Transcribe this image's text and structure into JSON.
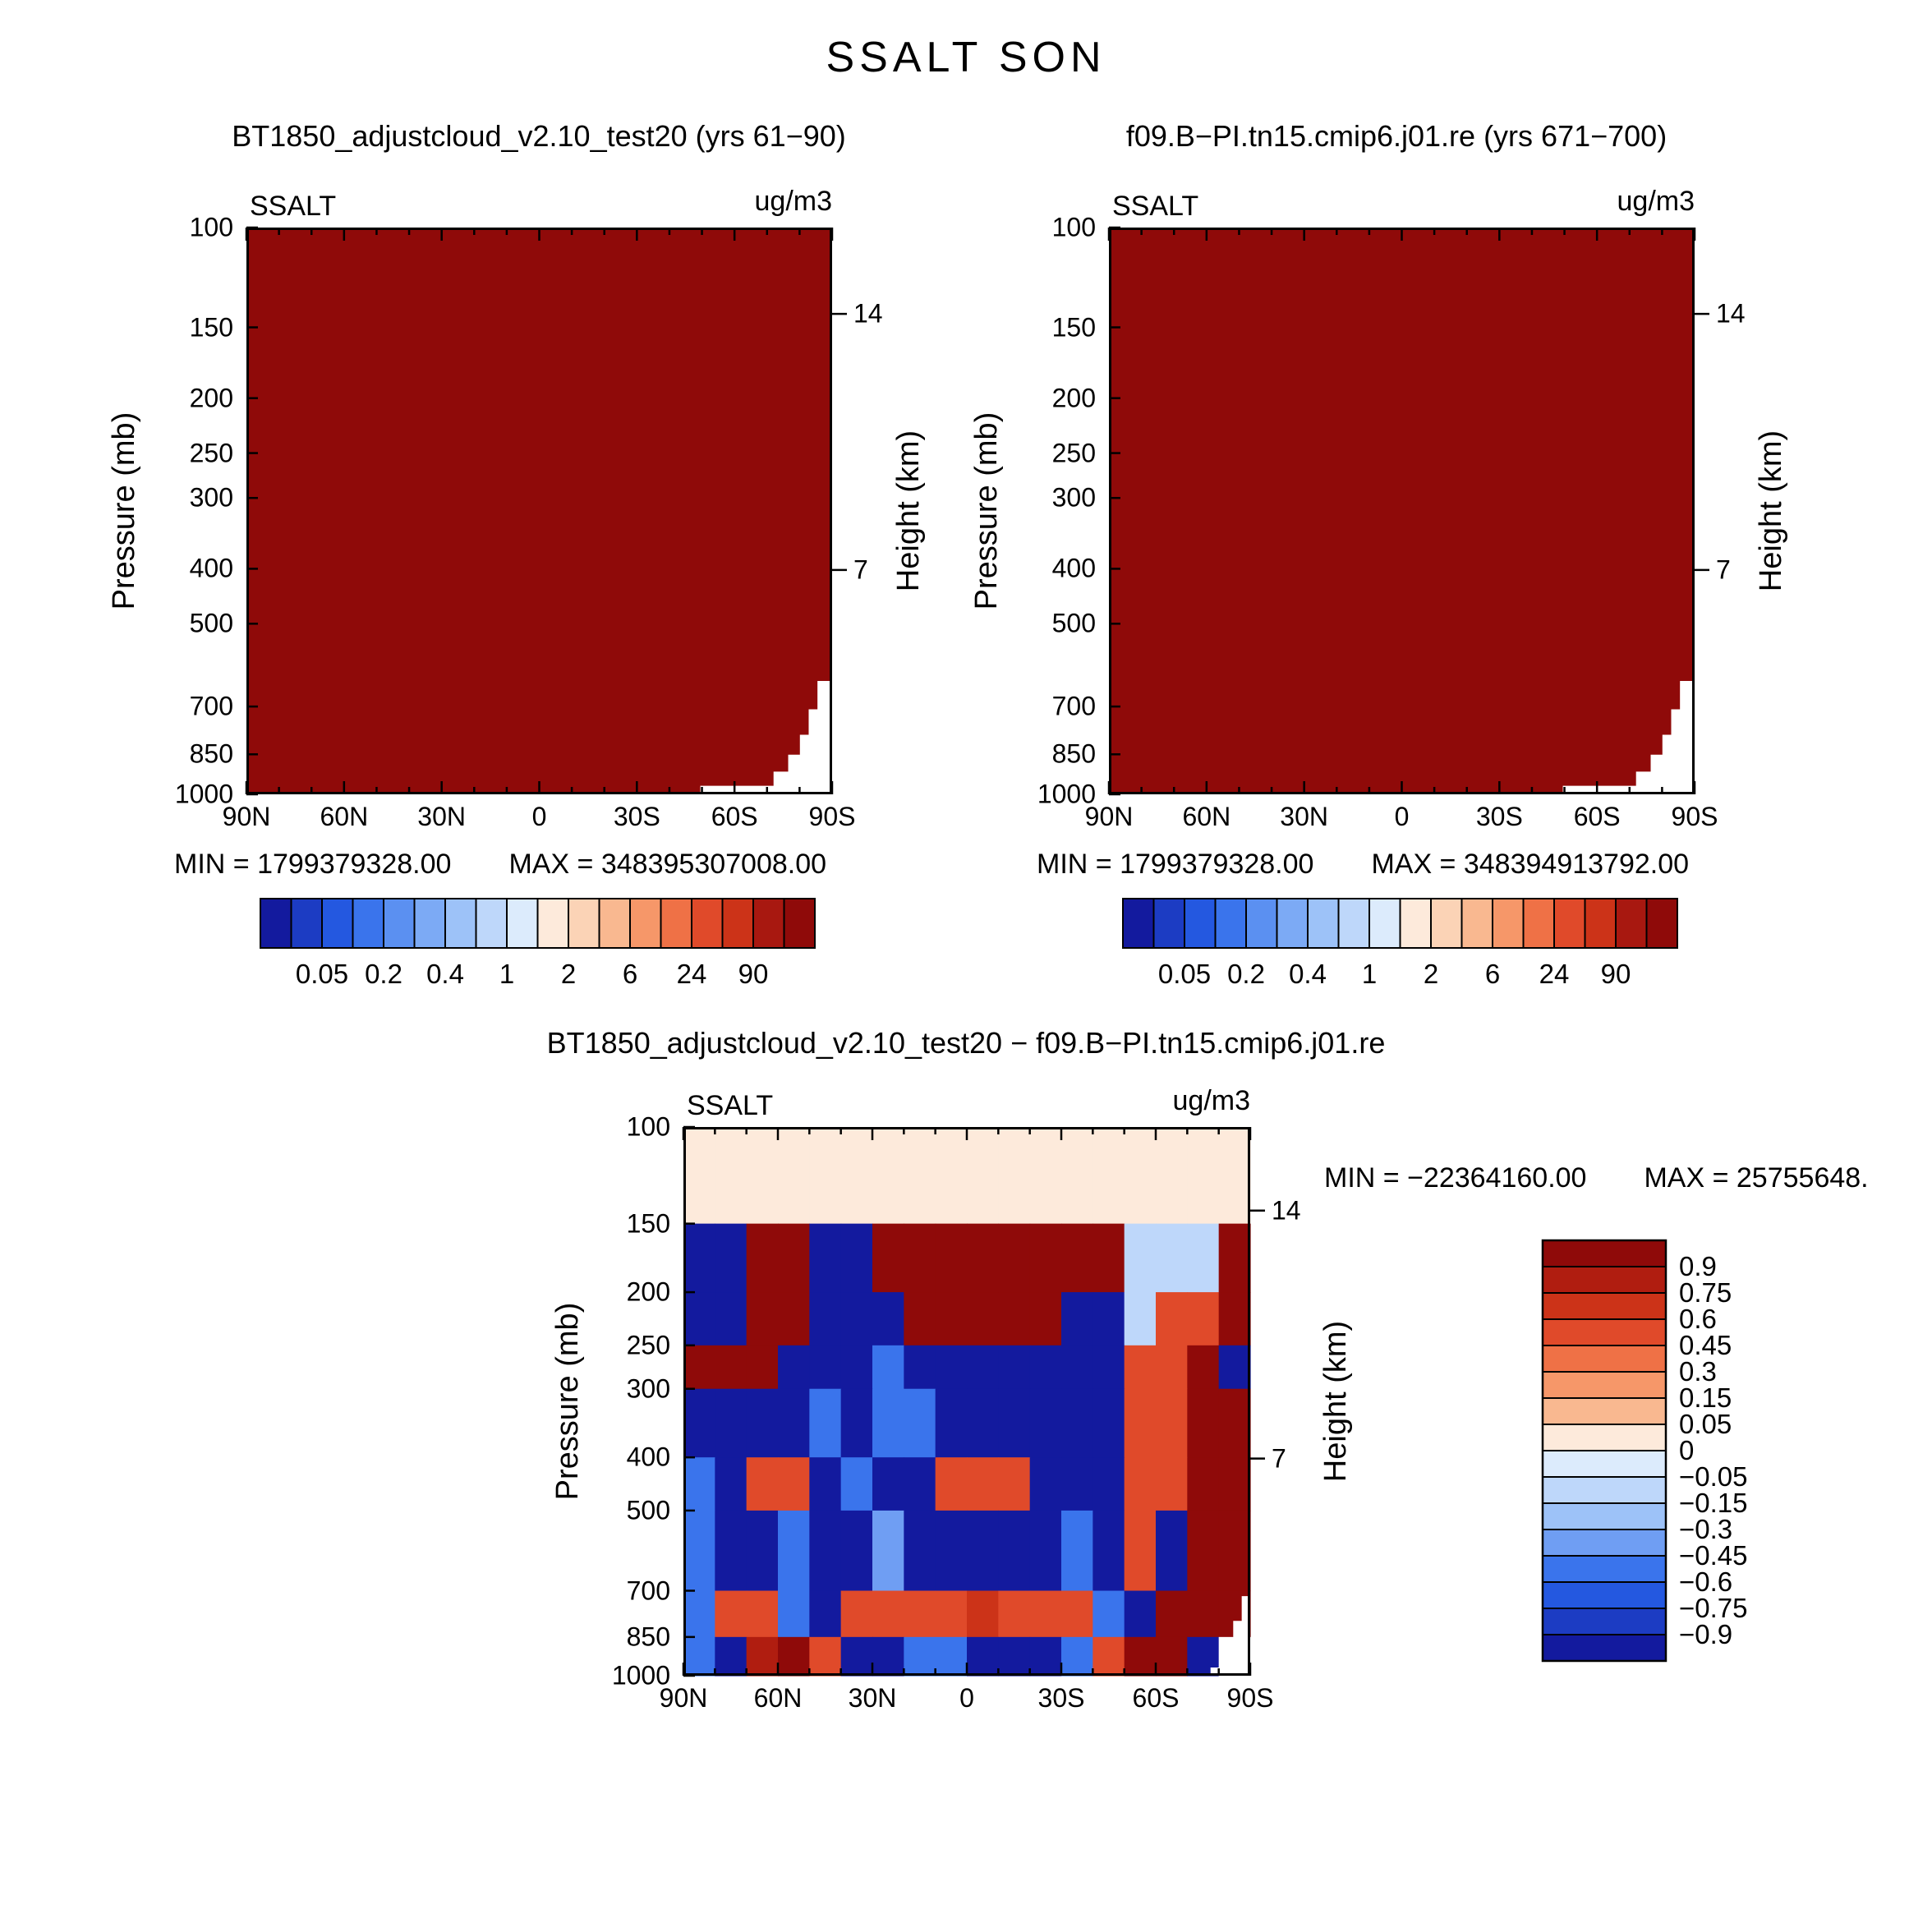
{
  "page_title": "SSALT SON",
  "variable": "SSALT",
  "season": "SON",
  "panels": {
    "left": {
      "title": "BT1850_adjustcloud_v2.10_test20 (yrs 61−90)",
      "field_label": "SSALT",
      "units": "ug/m3",
      "ylabel": "Pressure (mb)",
      "ylabel_right": "Height (km)",
      "min_label": "MIN = 1799379328.00",
      "max_label": "MAX = 348395307008.00"
    },
    "right": {
      "title": "f09.B−PI.tn15.cmip6.j01.re (yrs 671−700)",
      "field_label": "SSALT",
      "units": "ug/m3",
      "ylabel": "Pressure (mb)",
      "ylabel_right": "Height (km)",
      "min_label": "MIN = 1799379328.00",
      "max_label": "MAX = 348394913792.00"
    },
    "diff": {
      "title": "BT1850_adjustcloud_v2.10_test20 − f09.B−PI.tn15.cmip6.j01.re",
      "field_label": "SSALT",
      "units": "ug/m3",
      "ylabel": "Pressure (mb)",
      "ylabel_right": "Height (km)",
      "min_label": "MIN = −22364160.00",
      "max_label": "MAX = 25755648."
    }
  },
  "chart_data": [
    {
      "type": "heatmap",
      "title": "BT1850_adjustcloud_v2.10_test20 (yrs 61-90)",
      "xlabel": "latitude",
      "ylabel": "Pressure (mb)",
      "ylabel_right": "Height (km)",
      "x_ticks": {
        "labels": [
          "90N",
          "60N",
          "30N",
          "0",
          "30S",
          "60S",
          "90S"
        ],
        "lats": [
          90,
          60,
          30,
          0,
          -30,
          -60,
          -90
        ]
      },
      "pressure_ticks": [
        100,
        150,
        200,
        250,
        300,
        400,
        500,
        700,
        850,
        1000
      ],
      "height_ticks": [
        {
          "label": "14",
          "pressure": 142
        },
        {
          "label": "7",
          "pressure": 402
        }
      ],
      "min": 1799379328.0,
      "max": 348395307008.0,
      "field": {
        "description": "zonal-mean SSALT, everywhere above top contour level",
        "fill_value_exceeds": 90,
        "color": "#8f0a09"
      },
      "topography_mask_norm": [
        [
          0.775,
          1
        ],
        [
          0.775,
          0.985
        ],
        [
          0.9,
          0.985
        ],
        [
          0.9,
          0.96
        ],
        [
          0.925,
          0.96
        ],
        [
          0.925,
          0.93
        ],
        [
          0.945,
          0.93
        ],
        [
          0.945,
          0.895
        ],
        [
          0.96,
          0.895
        ],
        [
          0.96,
          0.85
        ],
        [
          0.975,
          0.85
        ],
        [
          0.975,
          0.8
        ],
        [
          1,
          0.8
        ],
        [
          1,
          1
        ]
      ],
      "colorbar": {
        "orientation": "horizontal",
        "colors": [
          "#131a9e",
          "#1c3cc3",
          "#2458e0",
          "#3a74ec",
          "#5b90f1",
          "#7caaf5",
          "#9dc2f8",
          "#bed7fa",
          "#dcebfc",
          "#fdeadb",
          "#fbd3b6",
          "#f9b890",
          "#f69769",
          "#ef7146",
          "#e04a2a",
          "#cc3318",
          "#a81810",
          "#8f0a09"
        ],
        "labels": [
          "0.05",
          "0.2",
          "0.4",
          "1",
          "2",
          "6",
          "24",
          "90"
        ],
        "label_boundary_indices": [
          2,
          4,
          6,
          8,
          10,
          12,
          14,
          16
        ]
      }
    },
    {
      "type": "heatmap",
      "title": "f09.B-PI.tn15.cmip6.j01.re (yrs 671-700)",
      "xlabel": "latitude",
      "ylabel": "Pressure (mb)",
      "ylabel_right": "Height (km)",
      "x_ticks": {
        "labels": [
          "90N",
          "60N",
          "30N",
          "0",
          "30S",
          "60S",
          "90S"
        ],
        "lats": [
          90,
          60,
          30,
          0,
          -30,
          -60,
          -90
        ]
      },
      "pressure_ticks": [
        100,
        150,
        200,
        250,
        300,
        400,
        500,
        700,
        850,
        1000
      ],
      "height_ticks": [
        {
          "label": "14",
          "pressure": 142
        },
        {
          "label": "7",
          "pressure": 402
        }
      ],
      "min": 1799379328.0,
      "max": 348394913792.0,
      "field": {
        "description": "zonal-mean SSALT, everywhere above top contour level",
        "fill_value_exceeds": 90,
        "color": "#8f0a09"
      },
      "topography_mask_norm": [
        [
          0.775,
          1
        ],
        [
          0.775,
          0.985
        ],
        [
          0.9,
          0.985
        ],
        [
          0.9,
          0.96
        ],
        [
          0.925,
          0.96
        ],
        [
          0.925,
          0.93
        ],
        [
          0.945,
          0.93
        ],
        [
          0.945,
          0.895
        ],
        [
          0.96,
          0.895
        ],
        [
          0.96,
          0.85
        ],
        [
          0.975,
          0.85
        ],
        [
          0.975,
          0.8
        ],
        [
          1,
          0.8
        ],
        [
          1,
          1
        ]
      ],
      "colorbar": {
        "orientation": "horizontal",
        "colors": [
          "#131a9e",
          "#1c3cc3",
          "#2458e0",
          "#3a74ec",
          "#5b90f1",
          "#7caaf5",
          "#9dc2f8",
          "#bed7fa",
          "#dcebfc",
          "#fdeadb",
          "#fbd3b6",
          "#f9b890",
          "#f69769",
          "#ef7146",
          "#e04a2a",
          "#cc3318",
          "#a81810",
          "#8f0a09"
        ],
        "labels": [
          "0.05",
          "0.2",
          "0.4",
          "1",
          "2",
          "6",
          "24",
          "90"
        ],
        "label_boundary_indices": [
          2,
          4,
          6,
          8,
          10,
          12,
          14,
          16
        ]
      }
    },
    {
      "type": "heatmap",
      "title": "BT1850_adjustcloud_v2.10_test20 - f09.B-PI.tn15.cmip6.j01.re",
      "xlabel": "latitude",
      "ylabel": "Pressure (mb)",
      "ylabel_right": "Height (km)",
      "x_ticks": {
        "labels": [
          "90N",
          "60N",
          "30N",
          "0",
          "30S",
          "60S",
          "90S"
        ],
        "lats": [
          90,
          60,
          30,
          0,
          -30,
          -60,
          -90
        ]
      },
      "pressure_ticks": [
        100,
        150,
        200,
        250,
        300,
        400,
        500,
        700,
        850,
        1000
      ],
      "height_ticks": [
        {
          "label": "14",
          "pressure": 142
        },
        {
          "label": "7",
          "pressure": 402
        }
      ],
      "min": -22364160.0,
      "max": 25755648,
      "lat_edges": [
        90,
        80,
        70,
        60,
        50,
        40,
        30,
        20,
        10,
        0,
        -10,
        -20,
        -30,
        -40,
        -50,
        -60,
        -70,
        -80,
        -90
      ],
      "pressure_edges": [
        100,
        150,
        200,
        250,
        300,
        400,
        500,
        700,
        850,
        1000
      ],
      "levels": [
        -0.9,
        -0.75,
        -0.6,
        -0.45,
        -0.3,
        -0.15,
        -0.05,
        0,
        0.05,
        0.15,
        0.3,
        0.45,
        0.6,
        0.75,
        0.9
      ],
      "level_colors": [
        "#131a9e",
        "#1c3cc3",
        "#2458e0",
        "#3a74ec",
        "#6f9ef3",
        "#9dc2f8",
        "#bed7fa",
        "#dcebfc",
        "#fdeadb",
        "#f9b890",
        "#f69769",
        "#ef7146",
        "#e04a2a",
        "#cc3318",
        "#b01d10",
        "#8f0a09"
      ],
      "values": [
        [
          0.02,
          0.02,
          0.02,
          0.02,
          0.02,
          0.02,
          0.02,
          0.02,
          0.02,
          0.02,
          0.02,
          0.02,
          0.02,
          0.02,
          0.02,
          0.02,
          0.02,
          0.02
        ],
        [
          -0.95,
          -0.95,
          0.95,
          0.95,
          -0.95,
          -0.95,
          0.95,
          0.95,
          0.95,
          0.95,
          0.95,
          0.95,
          0.95,
          0.95,
          -0.1,
          -0.1,
          -0.1,
          0.95
        ],
        [
          -0.95,
          -0.95,
          0.95,
          0.95,
          -0.95,
          -0.95,
          -0.95,
          0.95,
          0.95,
          0.95,
          0.95,
          0.95,
          -0.95,
          -0.95,
          -0.1,
          0.5,
          0.5,
          0.95
        ],
        [
          0.95,
          0.95,
          0.95,
          -0.95,
          -0.95,
          -0.95,
          -0.5,
          -0.95,
          -0.95,
          -0.95,
          -0.95,
          -0.95,
          -0.95,
          -0.95,
          0.5,
          0.5,
          0.95,
          -0.95
        ],
        [
          -0.95,
          -0.95,
          -0.95,
          -0.95,
          -0.5,
          -0.95,
          -0.5,
          -0.5,
          -0.95,
          -0.95,
          -0.95,
          -0.95,
          -0.95,
          -0.95,
          0.5,
          0.5,
          0.95,
          0.95
        ],
        [
          -0.5,
          -0.95,
          0.5,
          0.5,
          -0.95,
          -0.5,
          -0.95,
          -0.95,
          0.5,
          0.5,
          0.5,
          -0.95,
          -0.95,
          -0.95,
          0.5,
          0.5,
          0.95,
          0.95
        ],
        [
          -0.5,
          -0.95,
          -0.95,
          -0.5,
          -0.95,
          -0.95,
          -0.3,
          -0.95,
          -0.95,
          -0.95,
          -0.95,
          -0.95,
          -0.5,
          -0.95,
          0.5,
          -0.95,
          0.95,
          0.95
        ],
        [
          -0.5,
          0.5,
          0.5,
          -0.5,
          -0.95,
          0.5,
          0.5,
          0.5,
          0.5,
          0.65,
          0.5,
          0.5,
          0.5,
          -0.5,
          -0.95,
          0.95,
          0.95,
          0.95
        ],
        [
          -0.5,
          -0.95,
          0.8,
          0.95,
          0.5,
          -0.95,
          -0.95,
          -0.5,
          -0.5,
          -0.95,
          -0.95,
          -0.95,
          -0.5,
          0.5,
          0.95,
          0.95,
          -0.95,
          null
        ]
      ],
      "topography_mask_norm": [
        [
          0.93,
          1
        ],
        [
          0.93,
          0.985
        ],
        [
          0.955,
          0.985
        ],
        [
          0.955,
          0.95
        ],
        [
          0.97,
          0.95
        ],
        [
          0.97,
          0.9
        ],
        [
          0.985,
          0.9
        ],
        [
          0.985,
          0.855
        ],
        [
          1,
          0.855
        ],
        [
          1,
          1
        ]
      ],
      "colorbar": {
        "orientation": "vertical",
        "colors": [
          "#8f0a09",
          "#b01d10",
          "#cc3318",
          "#e04a2a",
          "#ef7146",
          "#f69769",
          "#f9b890",
          "#fdeadb",
          "#dcebfc",
          "#bed7fa",
          "#9dc2f8",
          "#6f9ef3",
          "#3a74ec",
          "#2458e0",
          "#1c3cc3",
          "#131a9e"
        ],
        "labels": [
          "0.9",
          "0.75",
          "0.6",
          "0.45",
          "0.3",
          "0.15",
          "0.05",
          "0",
          "−0.05",
          "−0.15",
          "−0.3",
          "−0.45",
          "−0.6",
          "−0.75",
          "−0.9"
        ]
      }
    }
  ]
}
